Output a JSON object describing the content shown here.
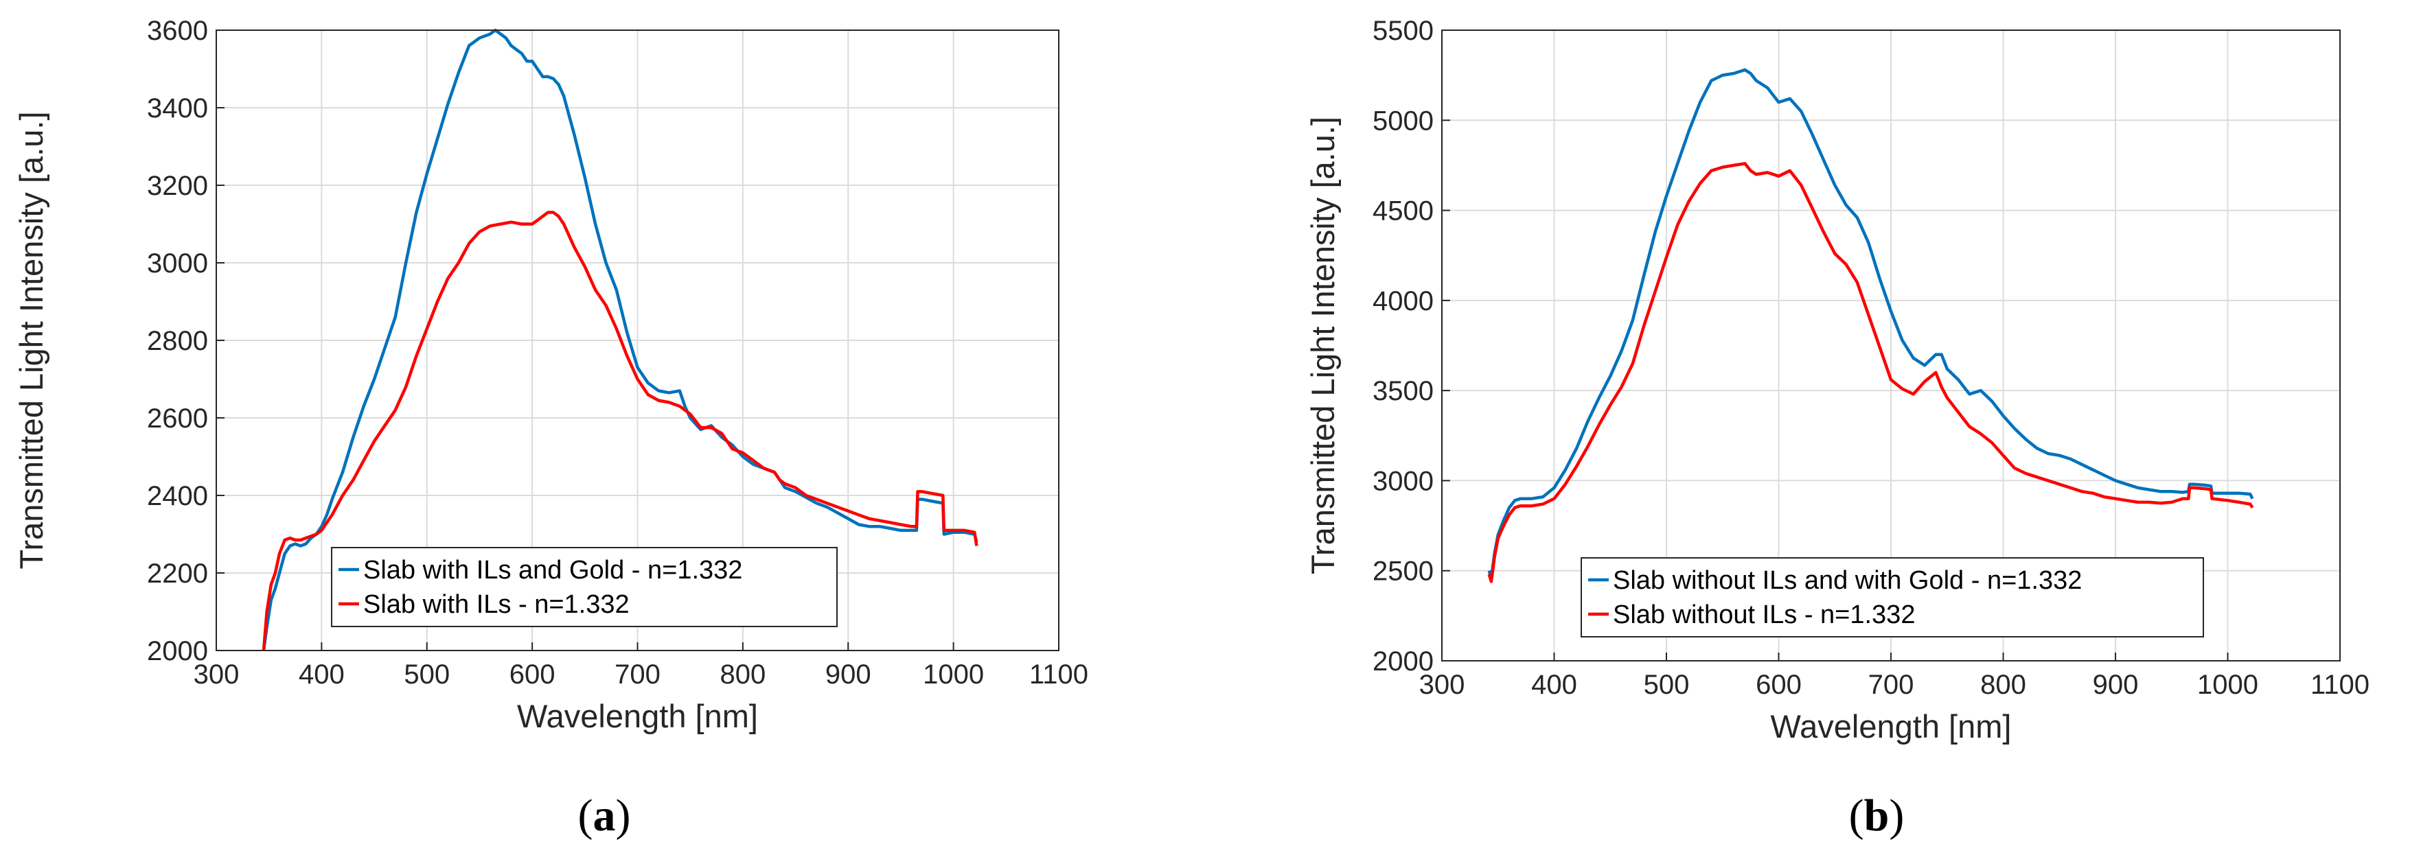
{
  "chart_data": [
    {
      "type": "line",
      "panel_label": {
        "open": "(",
        "letter": "a",
        "close": ")"
      },
      "xlabel": "Wavelength [nm]",
      "ylabel": "Transmitted Light Intensity [a.u.]",
      "xlim": [
        300,
        1100
      ],
      "ylim": [
        2000,
        3600
      ],
      "xticks": [
        300,
        400,
        500,
        600,
        700,
        800,
        900,
        1000,
        1100
      ],
      "yticks": [
        2000,
        2200,
        2400,
        2600,
        2800,
        3000,
        3200,
        3400,
        3600
      ],
      "grid": true,
      "legend_position": "lower-center",
      "series": [
        {
          "name": "Slab with ILs and Gold - n=1.332",
          "color": "#0072BD",
          "x": [
            345,
            348,
            352,
            356,
            360,
            365,
            370,
            375,
            380,
            385,
            390,
            395,
            400,
            405,
            410,
            420,
            430,
            440,
            450,
            460,
            470,
            480,
            490,
            500,
            510,
            520,
            530,
            540,
            550,
            560,
            565,
            570,
            575,
            580,
            585,
            590,
            595,
            600,
            605,
            610,
            615,
            620,
            625,
            630,
            640,
            650,
            660,
            670,
            680,
            690,
            700,
            710,
            720,
            730,
            740,
            745,
            750,
            760,
            770,
            780,
            790,
            800,
            810,
            820,
            830,
            835,
            840,
            850,
            860,
            870,
            880,
            890,
            900,
            910,
            920,
            930,
            940,
            950,
            960,
            965,
            966,
            970,
            980,
            990,
            991,
            1000,
            1010,
            1020,
            1022
          ],
          "y": [
            2000,
            2060,
            2130,
            2160,
            2200,
            2250,
            2270,
            2275,
            2270,
            2275,
            2290,
            2300,
            2320,
            2350,
            2390,
            2460,
            2550,
            2630,
            2700,
            2780,
            2860,
            3000,
            3130,
            3230,
            3320,
            3410,
            3490,
            3560,
            3580,
            3590,
            3600,
            3590,
            3580,
            3560,
            3550,
            3540,
            3520,
            3520,
            3500,
            3480,
            3480,
            3475,
            3460,
            3430,
            3330,
            3220,
            3100,
            3000,
            2930,
            2820,
            2730,
            2690,
            2670,
            2665,
            2670,
            2630,
            2600,
            2570,
            2580,
            2550,
            2530,
            2500,
            2480,
            2470,
            2460,
            2440,
            2420,
            2410,
            2395,
            2380,
            2370,
            2355,
            2340,
            2325,
            2320,
            2320,
            2315,
            2310,
            2310,
            2310,
            2390,
            2390,
            2385,
            2380,
            2300,
            2305,
            2305,
            2300,
            2280
          ]
        },
        {
          "name": "Slab with ILs - n=1.332",
          "color": "#FF0000",
          "x": [
            345,
            348,
            352,
            356,
            360,
            365,
            370,
            375,
            380,
            385,
            390,
            395,
            400,
            405,
            410,
            420,
            430,
            440,
            450,
            460,
            470,
            480,
            490,
            500,
            510,
            520,
            530,
            540,
            550,
            560,
            570,
            580,
            590,
            600,
            605,
            610,
            615,
            620,
            625,
            630,
            640,
            650,
            660,
            670,
            680,
            690,
            700,
            710,
            720,
            730,
            740,
            750,
            760,
            770,
            780,
            790,
            800,
            810,
            820,
            830,
            835,
            840,
            850,
            860,
            870,
            880,
            890,
            900,
            910,
            920,
            930,
            940,
            950,
            960,
            965,
            966,
            970,
            980,
            990,
            991,
            1000,
            1010,
            1020,
            1022
          ],
          "y": [
            2000,
            2100,
            2170,
            2200,
            2250,
            2285,
            2290,
            2285,
            2285,
            2290,
            2295,
            2300,
            2310,
            2330,
            2350,
            2400,
            2440,
            2490,
            2540,
            2580,
            2620,
            2680,
            2760,
            2830,
            2900,
            2960,
            3000,
            3050,
            3080,
            3095,
            3100,
            3105,
            3100,
            3100,
            3110,
            3120,
            3130,
            3130,
            3120,
            3100,
            3040,
            2990,
            2930,
            2890,
            2830,
            2760,
            2700,
            2660,
            2645,
            2640,
            2630,
            2610,
            2575,
            2575,
            2560,
            2520,
            2510,
            2490,
            2470,
            2460,
            2440,
            2430,
            2420,
            2400,
            2390,
            2380,
            2370,
            2360,
            2350,
            2340,
            2335,
            2330,
            2325,
            2320,
            2320,
            2410,
            2410,
            2405,
            2400,
            2310,
            2310,
            2310,
            2305,
            2270
          ]
        }
      ]
    },
    {
      "type": "line",
      "panel_label": {
        "open": "(",
        "letter": "b",
        "close": ")"
      },
      "xlabel": "Wavelength [nm]",
      "ylabel": "Transmitted Light Intensity [a.u.]",
      "xlim": [
        300,
        1100
      ],
      "ylim": [
        2000,
        5500
      ],
      "xticks": [
        300,
        400,
        500,
        600,
        700,
        800,
        900,
        1000,
        1100
      ],
      "yticks": [
        2000,
        2500,
        3000,
        3500,
        4000,
        4500,
        5000,
        5500
      ],
      "grid": true,
      "legend_position": "lower-left",
      "series": [
        {
          "name": "Slab without ILs and with Gold - n=1.332",
          "color": "#0072BD",
          "x": [
            342,
            344,
            347,
            350,
            355,
            360,
            365,
            370,
            380,
            390,
            400,
            410,
            420,
            430,
            440,
            450,
            460,
            470,
            480,
            490,
            500,
            510,
            520,
            530,
            540,
            550,
            560,
            570,
            575,
            580,
            590,
            600,
            610,
            620,
            630,
            640,
            650,
            660,
            670,
            680,
            690,
            700,
            710,
            720,
            730,
            740,
            745,
            750,
            760,
            770,
            780,
            790,
            800,
            810,
            820,
            830,
            840,
            850,
            860,
            870,
            880,
            890,
            900,
            910,
            920,
            930,
            940,
            950,
            960,
            965,
            966,
            970,
            980,
            985,
            986,
            1000,
            1010,
            1020,
            1022
          ],
          "y": [
            2500,
            2460,
            2600,
            2700,
            2780,
            2850,
            2890,
            2900,
            2900,
            2910,
            2960,
            3060,
            3180,
            3330,
            3460,
            3580,
            3720,
            3890,
            4140,
            4380,
            4580,
            4760,
            4940,
            5100,
            5220,
            5250,
            5260,
            5280,
            5260,
            5220,
            5180,
            5100,
            5120,
            5050,
            4920,
            4780,
            4640,
            4530,
            4460,
            4320,
            4120,
            3940,
            3780,
            3680,
            3640,
            3700,
            3700,
            3620,
            3560,
            3480,
            3500,
            3440,
            3360,
            3290,
            3230,
            3180,
            3150,
            3140,
            3120,
            3090,
            3060,
            3030,
            3000,
            2980,
            2960,
            2950,
            2940,
            2940,
            2935,
            2940,
            2980,
            2980,
            2975,
            2970,
            2930,
            2930,
            2930,
            2925,
            2900
          ]
        },
        {
          "name": "Slab without ILs - n=1.332",
          "color": "#FF0000",
          "x": [
            342,
            344,
            347,
            350,
            355,
            360,
            365,
            370,
            380,
            390,
            400,
            410,
            420,
            430,
            440,
            450,
            460,
            470,
            480,
            490,
            500,
            510,
            520,
            530,
            540,
            550,
            560,
            570,
            575,
            580,
            590,
            600,
            610,
            620,
            630,
            640,
            650,
            660,
            670,
            680,
            690,
            700,
            710,
            720,
            730,
            740,
            745,
            750,
            760,
            770,
            780,
            790,
            800,
            810,
            820,
            830,
            840,
            850,
            860,
            870,
            880,
            890,
            900,
            910,
            920,
            930,
            940,
            950,
            960,
            965,
            966,
            970,
            980,
            985,
            986,
            1000,
            1010,
            1020,
            1022
          ],
          "y": [
            2480,
            2440,
            2580,
            2680,
            2750,
            2810,
            2850,
            2860,
            2860,
            2870,
            2900,
            2980,
            3080,
            3190,
            3310,
            3420,
            3520,
            3650,
            3860,
            4050,
            4240,
            4420,
            4550,
            4650,
            4720,
            4740,
            4750,
            4760,
            4720,
            4700,
            4710,
            4690,
            4720,
            4640,
            4510,
            4380,
            4260,
            4200,
            4100,
            3920,
            3740,
            3560,
            3510,
            3480,
            3550,
            3600,
            3520,
            3460,
            3380,
            3300,
            3260,
            3210,
            3140,
            3070,
            3040,
            3020,
            3000,
            2980,
            2960,
            2940,
            2930,
            2910,
            2900,
            2890,
            2880,
            2880,
            2875,
            2880,
            2900,
            2900,
            2960,
            2960,
            2955,
            2950,
            2900,
            2890,
            2880,
            2870,
            2850
          ]
        }
      ]
    }
  ]
}
